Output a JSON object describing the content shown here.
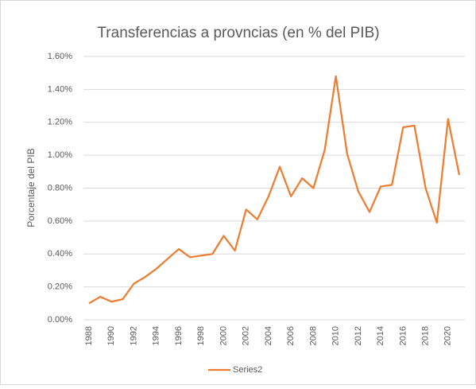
{
  "chart_data": {
    "type": "line",
    "title": "Transferencias  a provncias (en % del PIB)",
    "y_label": "Porcentaje del PIB",
    "categories": [
      "1988",
      null,
      "1990",
      null,
      "1992",
      null,
      "1994",
      null,
      "1996",
      null,
      "1998",
      null,
      "2000",
      null,
      "2002",
      null,
      "2004",
      null,
      "2006",
      null,
      "2008",
      null,
      "2010",
      null,
      "2012",
      null,
      "2014",
      null,
      "2016",
      null,
      "2018",
      null,
      "2020",
      null
    ],
    "series": [
      {
        "name": "Series2",
        "color": "#ed7d31",
        "values": [
          0.1,
          0.14,
          0.11,
          0.125,
          0.22,
          0.26,
          0.31,
          0.37,
          0.43,
          0.38,
          0.39,
          0.4,
          0.51,
          0.42,
          0.67,
          0.61,
          0.75,
          0.93,
          0.75,
          0.86,
          0.8,
          1.03,
          1.48,
          1.01,
          0.78,
          0.655,
          0.81,
          0.82,
          1.17,
          1.18,
          0.8,
          0.59,
          1.22,
          0.88
        ]
      }
    ],
    "ylim": [
      0,
      1.6
    ],
    "yticks": [
      {
        "value": 0,
        "label": "0.00%"
      },
      {
        "value": 0.2,
        "label": "0.20%"
      },
      {
        "value": 0.4,
        "label": "0.40%"
      },
      {
        "value": 0.6,
        "label": "0.60%"
      },
      {
        "value": 0.8,
        "label": "0.80%"
      },
      {
        "value": 1.0,
        "label": "1.00%"
      },
      {
        "value": 1.2,
        "label": "1.20%"
      },
      {
        "value": 1.4,
        "label": "1.40%"
      },
      {
        "value": 1.6,
        "label": "1.60%"
      }
    ],
    "grid": true,
    "legend": "bottom"
  }
}
